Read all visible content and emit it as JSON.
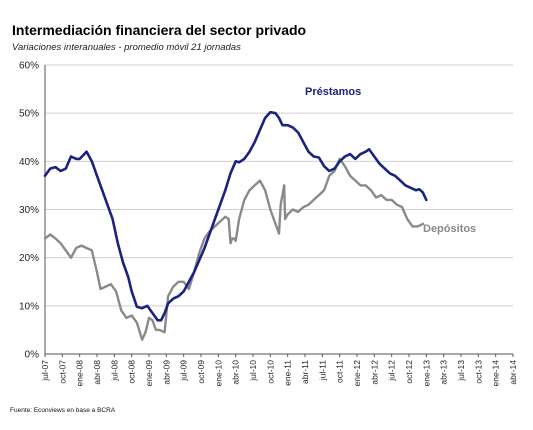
{
  "title": "Intermediación financiera del sector privado",
  "subtitle": "Variaciones interanuales - promedio móvil 21 jornadas",
  "source": "Fuente: Econviews en base a BCRA",
  "chart_data": {
    "type": "line",
    "y_ticks": [
      "60%",
      "50%",
      "40%",
      "30%",
      "20%",
      "10%",
      "0%"
    ],
    "ylim": [
      0,
      60
    ],
    "x_ticks": [
      "jul-07",
      "oct-07",
      "ene-08",
      "abr-08",
      "jul-08",
      "oct-08",
      "ene-09",
      "abr-09",
      "jul-09",
      "oct-09",
      "ene-10",
      "abr-10",
      "jul-10",
      "oct-10",
      "ene-11",
      "abr-11",
      "jul-11",
      "oct-11",
      "ene-12",
      "abr-12",
      "jul-12",
      "oct-12",
      "ene-13",
      "abr-13",
      "jul-13",
      "oct-13",
      "ene-14",
      "abr-14"
    ],
    "grid": true,
    "series": [
      {
        "name": "Préstamos",
        "color": "#1a237e",
        "points": [
          [
            0,
            37
          ],
          [
            0.3,
            38.5
          ],
          [
            0.6,
            38.8
          ],
          [
            0.9,
            38
          ],
          [
            1.2,
            38.5
          ],
          [
            1.5,
            41
          ],
          [
            1.8,
            40.5
          ],
          [
            2,
            40.5
          ],
          [
            2.4,
            42
          ],
          [
            2.7,
            40
          ],
          [
            3,
            37
          ],
          [
            3.3,
            34
          ],
          [
            3.6,
            31
          ],
          [
            3.9,
            28
          ],
          [
            4.2,
            23
          ],
          [
            4.5,
            19
          ],
          [
            4.8,
            16
          ],
          [
            5,
            13
          ],
          [
            5.3,
            9.8
          ],
          [
            5.6,
            9.5
          ],
          [
            5.9,
            10
          ],
          [
            6.1,
            9
          ],
          [
            6.3,
            8
          ],
          [
            6.5,
            7
          ],
          [
            6.7,
            7
          ],
          [
            6.9,
            8.5
          ],
          [
            7.1,
            10.5
          ],
          [
            7.4,
            11.5
          ],
          [
            7.7,
            12
          ],
          [
            8,
            13
          ],
          [
            8.3,
            15
          ],
          [
            8.6,
            17
          ],
          [
            8.9,
            19.5
          ],
          [
            9.2,
            22
          ],
          [
            9.5,
            25
          ],
          [
            9.8,
            28
          ],
          [
            10.1,
            31
          ],
          [
            10.4,
            34
          ],
          [
            10.7,
            37.5
          ],
          [
            11,
            40
          ],
          [
            11.2,
            39.8
          ],
          [
            11.5,
            40.5
          ],
          [
            11.8,
            42
          ],
          [
            12.1,
            44
          ],
          [
            12.4,
            46.5
          ],
          [
            12.7,
            49
          ],
          [
            13,
            50.2
          ],
          [
            13.3,
            50
          ],
          [
            13.5,
            49
          ],
          [
            13.7,
            47.5
          ],
          [
            14,
            47.5
          ],
          [
            14.3,
            47
          ],
          [
            14.6,
            46
          ],
          [
            14.9,
            44
          ],
          [
            15.2,
            42
          ],
          [
            15.5,
            41
          ],
          [
            15.8,
            40.8
          ],
          [
            16.1,
            39
          ],
          [
            16.4,
            38
          ],
          [
            16.7,
            38.5
          ],
          [
            17,
            40
          ],
          [
            17.3,
            41
          ],
          [
            17.6,
            41.5
          ],
          [
            17.9,
            40.5
          ],
          [
            18.2,
            41.5
          ],
          [
            18.5,
            42
          ],
          [
            18.7,
            42.5
          ],
          [
            19,
            41
          ],
          [
            19.3,
            39.5
          ],
          [
            19.6,
            38.5
          ],
          [
            19.9,
            37.5
          ],
          [
            20.2,
            37
          ],
          [
            20.5,
            36
          ],
          [
            20.8,
            35
          ],
          [
            21.1,
            34.5
          ],
          [
            21.4,
            34
          ],
          [
            21.6,
            34.2
          ],
          [
            21.8,
            33.5
          ],
          [
            22,
            32
          ]
        ]
      },
      {
        "name": "Depósitos",
        "color": "#8a8a8a",
        "points": [
          [
            0,
            24
          ],
          [
            0.3,
            24.8
          ],
          [
            0.6,
            24
          ],
          [
            0.9,
            23
          ],
          [
            1.2,
            21.5
          ],
          [
            1.5,
            20
          ],
          [
            1.8,
            22
          ],
          [
            2.1,
            22.5
          ],
          [
            2.4,
            22
          ],
          [
            2.7,
            21.5
          ],
          [
            3,
            17
          ],
          [
            3.2,
            13.5
          ],
          [
            3.5,
            14
          ],
          [
            3.8,
            14.5
          ],
          [
            4.1,
            13
          ],
          [
            4.4,
            9
          ],
          [
            4.7,
            7.5
          ],
          [
            5,
            8
          ],
          [
            5.3,
            6.5
          ],
          [
            5.6,
            3
          ],
          [
            5.8,
            4.5
          ],
          [
            6,
            7.5
          ],
          [
            6.2,
            7
          ],
          [
            6.4,
            5
          ],
          [
            6.6,
            5
          ],
          [
            6.9,
            4.5
          ],
          [
            7.1,
            12
          ],
          [
            7.4,
            14
          ],
          [
            7.7,
            15
          ],
          [
            8,
            15
          ],
          [
            8.3,
            13.5
          ],
          [
            8.6,
            17
          ],
          [
            8.9,
            21
          ],
          [
            9.2,
            24
          ],
          [
            9.5,
            25.5
          ],
          [
            9.8,
            26.5
          ],
          [
            10.1,
            27.5
          ],
          [
            10.4,
            28.5
          ],
          [
            10.6,
            28
          ],
          [
            10.7,
            23
          ],
          [
            10.8,
            24
          ],
          [
            10.9,
            24
          ],
          [
            11,
            23.5
          ],
          [
            11.2,
            28
          ],
          [
            11.5,
            32
          ],
          [
            11.8,
            34
          ],
          [
            12.1,
            35
          ],
          [
            12.4,
            36
          ],
          [
            12.7,
            34
          ],
          [
            13,
            30
          ],
          [
            13.3,
            27
          ],
          [
            13.5,
            25
          ],
          [
            13.6,
            31
          ],
          [
            13.8,
            35
          ],
          [
            13.85,
            28
          ],
          [
            14,
            29
          ],
          [
            14.3,
            30
          ],
          [
            14.6,
            29.5
          ],
          [
            14.9,
            30.5
          ],
          [
            15.2,
            31
          ],
          [
            15.5,
            32
          ],
          [
            15.8,
            33
          ],
          [
            16.1,
            34
          ],
          [
            16.4,
            37
          ],
          [
            16.7,
            38
          ],
          [
            17,
            40.5
          ],
          [
            17.3,
            39
          ],
          [
            17.6,
            37
          ],
          [
            17.9,
            36
          ],
          [
            18.2,
            35
          ],
          [
            18.5,
            35
          ],
          [
            18.8,
            34
          ],
          [
            19.1,
            32.5
          ],
          [
            19.4,
            33
          ],
          [
            19.7,
            32
          ],
          [
            20,
            32
          ],
          [
            20.3,
            31
          ],
          [
            20.6,
            30.5
          ],
          [
            20.9,
            28
          ],
          [
            21.2,
            26.5
          ],
          [
            21.5,
            26.5
          ],
          [
            21.8,
            27
          ]
        ]
      }
    ]
  }
}
